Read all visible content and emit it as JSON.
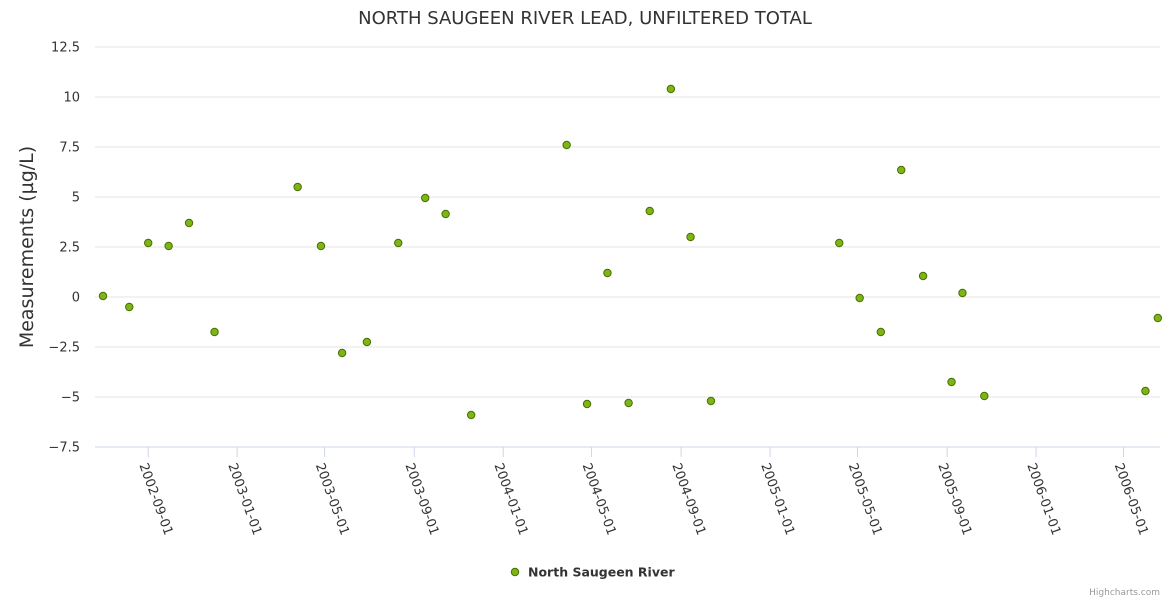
{
  "chart_data": {
    "type": "scatter",
    "title": "NORTH SAUGEEN RIVER LEAD, UNFILTERED TOTAL",
    "xlabel": "",
    "ylabel": "Measurements (µg/L)",
    "ylim": [
      -7.5,
      12.5
    ],
    "yticks": [
      "12.5",
      "10",
      "7.5",
      "5",
      "2.5",
      "0",
      "−2.5",
      "−5",
      "−7.5"
    ],
    "ytick_values": [
      12.5,
      10,
      7.5,
      5,
      2.5,
      0,
      -2.5,
      -5,
      -7.5
    ],
    "xlim": [
      "2002-06-20",
      "2006-06-20"
    ],
    "xticks": [
      "2002-09-01",
      "2003-01-01",
      "2003-05-01",
      "2003-09-01",
      "2004-01-01",
      "2004-05-01",
      "2004-09-01",
      "2005-01-01",
      "2005-05-01",
      "2005-09-01",
      "2006-01-01",
      "2006-05-01"
    ],
    "grid": true,
    "legend_position": "bottom-center",
    "series": [
      {
        "name": "North Saugeen River",
        "color": "#7cb518",
        "edge_color": "#4a6e00",
        "points": [
          {
            "x": "2002-07-01",
            "y": 0.05
          },
          {
            "x": "2002-08-06",
            "y": -0.5
          },
          {
            "x": "2002-09-01",
            "y": 2.7
          },
          {
            "x": "2002-09-29",
            "y": 2.55
          },
          {
            "x": "2002-10-27",
            "y": 3.7
          },
          {
            "x": "2002-12-01",
            "y": -1.75
          },
          {
            "x": "2003-03-25",
            "y": 5.5
          },
          {
            "x": "2003-04-26",
            "y": 2.55
          },
          {
            "x": "2003-05-25",
            "y": -2.8
          },
          {
            "x": "2003-06-28",
            "y": -2.25
          },
          {
            "x": "2003-08-10",
            "y": 2.7
          },
          {
            "x": "2003-09-16",
            "y": 4.95
          },
          {
            "x": "2003-10-14",
            "y": 4.15
          },
          {
            "x": "2003-11-18",
            "y": -5.9
          },
          {
            "x": "2004-03-28",
            "y": 7.6
          },
          {
            "x": "2004-04-25",
            "y": -5.35
          },
          {
            "x": "2004-05-23",
            "y": 1.2
          },
          {
            "x": "2004-06-21",
            "y": -5.3
          },
          {
            "x": "2004-07-20",
            "y": 4.3
          },
          {
            "x": "2004-08-18",
            "y": 10.4
          },
          {
            "x": "2004-09-14",
            "y": 3.0
          },
          {
            "x": "2004-10-12",
            "y": -5.2
          },
          {
            "x": "2005-04-06",
            "y": 2.7
          },
          {
            "x": "2005-05-04",
            "y": -0.05
          },
          {
            "x": "2005-06-02",
            "y": -1.75
          },
          {
            "x": "2005-06-30",
            "y": 6.35
          },
          {
            "x": "2005-07-30",
            "y": 1.05
          },
          {
            "x": "2005-09-07",
            "y": -4.25
          },
          {
            "x": "2005-09-22",
            "y": 0.2
          },
          {
            "x": "2005-10-22",
            "y": -4.95
          },
          {
            "x": "2006-05-31",
            "y": -4.7
          },
          {
            "x": "2006-06-17",
            "y": -1.05
          }
        ]
      }
    ]
  },
  "legend": {
    "label": "North Saugeen River"
  },
  "credits": "Highcharts.com"
}
